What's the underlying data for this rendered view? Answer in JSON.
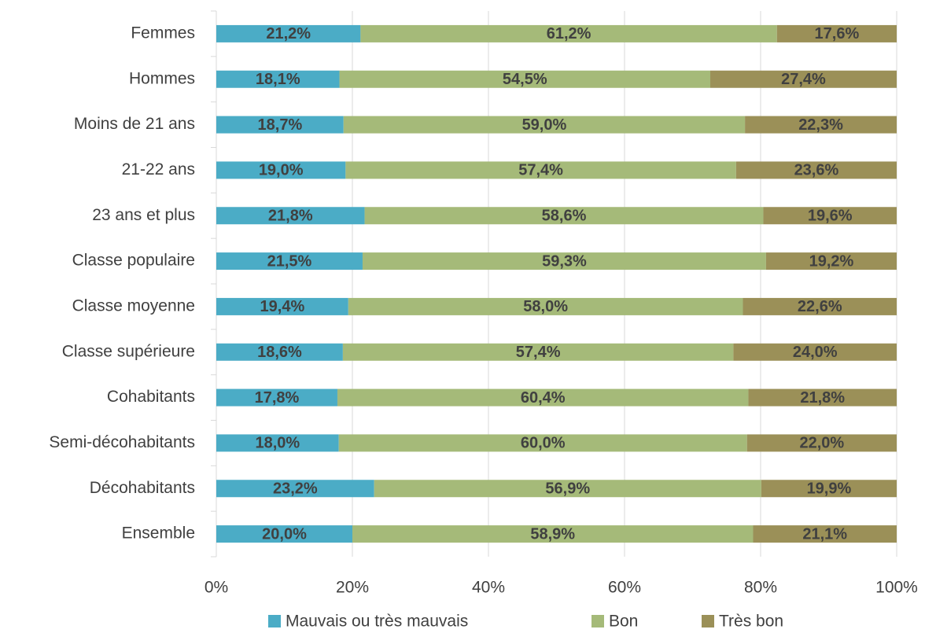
{
  "chart_data": {
    "type": "stacked_bar_horizontal",
    "categories": [
      "Femmes",
      "Hommes",
      "Moins de 21 ans",
      "21-22 ans",
      "23 ans et plus",
      "Classe populaire",
      "Classe moyenne",
      "Classe supérieure",
      "Cohabitants",
      "Semi-décohabitants",
      "Décohabitants",
      "Ensemble"
    ],
    "series": [
      {
        "name": "Mauvais ou très mauvais",
        "color": "#4bacc6",
        "values": [
          21.2,
          18.1,
          18.7,
          19.0,
          21.8,
          21.5,
          19.4,
          18.6,
          17.8,
          18.0,
          23.2,
          20.0
        ],
        "value_labels": [
          "21,2%",
          "18,1%",
          "18,7%",
          "19,0%",
          "21,8%",
          "21,5%",
          "19,4%",
          "18,6%",
          "17,8%",
          "18,0%",
          "23,2%",
          "20,0%"
        ]
      },
      {
        "name": "Bon",
        "color": "#a5ba79",
        "values": [
          61.2,
          54.5,
          59.0,
          57.4,
          58.6,
          59.3,
          58.0,
          57.4,
          60.4,
          60.0,
          56.9,
          58.9
        ],
        "value_labels": [
          "61,2%",
          "54,5%",
          "59,0%",
          "57,4%",
          "58,6%",
          "59,3%",
          "58,0%",
          "57,4%",
          "60,4%",
          "60,0%",
          "56,9%",
          "58,9%"
        ]
      },
      {
        "name": "Très bon",
        "color": "#9b9058",
        "values": [
          17.6,
          27.4,
          22.3,
          23.6,
          19.6,
          19.2,
          22.6,
          24.0,
          21.8,
          22.0,
          19.9,
          21.1
        ],
        "value_labels": [
          "17,6%",
          "27,4%",
          "22,3%",
          "23,6%",
          "19,6%",
          "19,2%",
          "22,6%",
          "24,0%",
          "21,8%",
          "22,0%",
          "19,9%",
          "21,1%"
        ]
      }
    ],
    "xlim": [
      0,
      100
    ],
    "xticks": [
      {
        "value": 0,
        "label": "0%"
      },
      {
        "value": 20,
        "label": "20%"
      },
      {
        "value": 40,
        "label": "40%"
      },
      {
        "value": 60,
        "label": "60%"
      },
      {
        "value": 80,
        "label": "80%"
      },
      {
        "value": 100,
        "label": "100%"
      }
    ],
    "grid": true,
    "legend": "bottom"
  }
}
